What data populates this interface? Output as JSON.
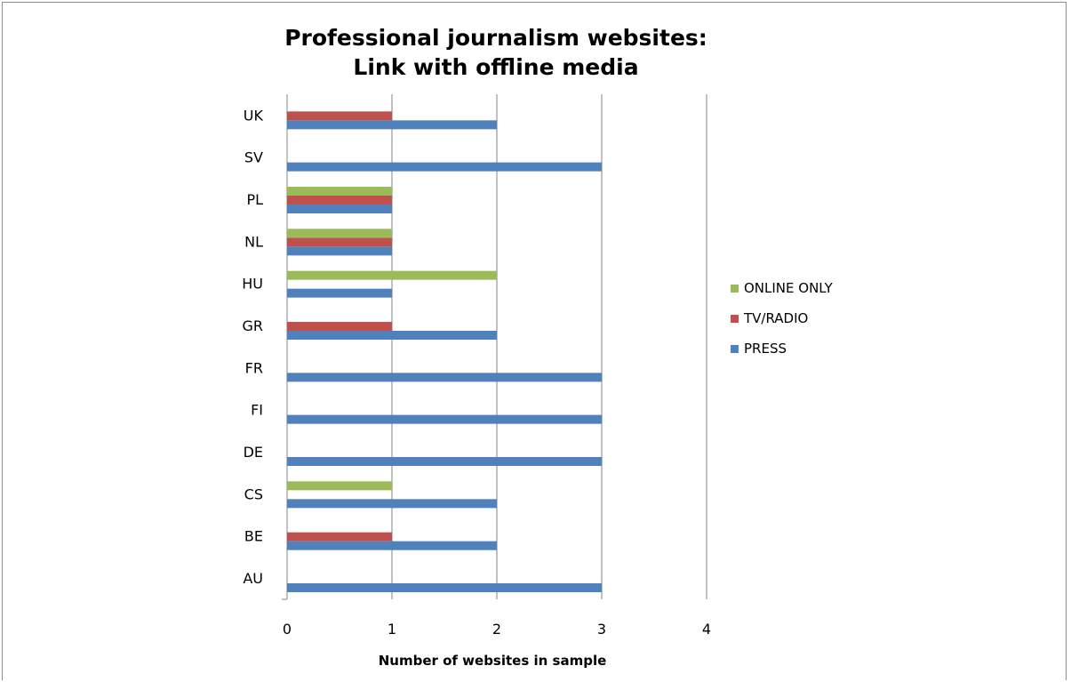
{
  "chart_data": {
    "type": "bar",
    "orientation": "horizontal",
    "title_lines": [
      "Professional journalism websites:",
      "Link with offline media"
    ],
    "xlabel": "Number of websites in sample",
    "ylabel": "",
    "xlim": [
      0,
      4
    ],
    "xticks": [
      "0",
      "1",
      "2",
      "3",
      "4"
    ],
    "grid": "vertical major gridlines",
    "legend_position": "right",
    "categories": [
      "AU",
      "BE",
      "CS",
      "DE",
      "FI",
      "FR",
      "GR",
      "HU",
      "NL",
      "PL",
      "SV",
      "UK"
    ],
    "series": [
      {
        "name": "PRESS",
        "color": "#4f81bd",
        "values": [
          3,
          2,
          2,
          3,
          3,
          3,
          2,
          1,
          1,
          1,
          3,
          2
        ]
      },
      {
        "name": "TV/RADIO",
        "color": "#c0504d",
        "values": [
          0,
          1,
          0,
          0,
          0,
          0,
          1,
          0,
          1,
          1,
          0,
          1
        ]
      },
      {
        "name": "ONLINE ONLY",
        "color": "#9bbb59",
        "values": [
          0,
          0,
          1,
          0,
          0,
          0,
          0,
          2,
          1,
          1,
          0,
          0
        ]
      }
    ],
    "legend_order": [
      "ONLINE ONLY",
      "TV/RADIO",
      "PRESS"
    ]
  }
}
